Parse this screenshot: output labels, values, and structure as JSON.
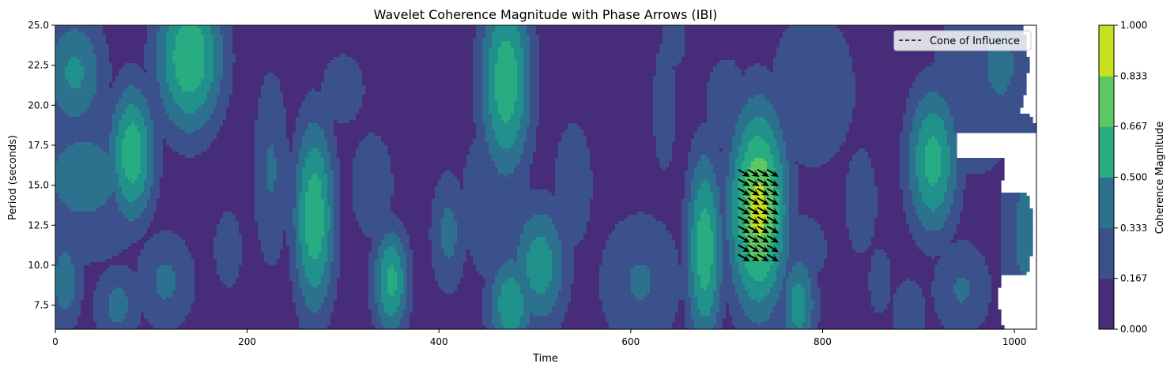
{
  "chart_data": {
    "type": "heatmap",
    "subtype": "filled-contour",
    "title": "Wavelet Coherence Magnitude with Phase Arrows (IBI)",
    "xlabel": "Time",
    "ylabel": "Period (seconds)",
    "xlim": [
      0,
      1023
    ],
    "ylim": [
      6,
      25
    ],
    "xticks": [
      0,
      200,
      400,
      600,
      800,
      1000
    ],
    "yticks": [
      7.5,
      10.0,
      12.5,
      15.0,
      17.5,
      20.0,
      22.5,
      25.0
    ],
    "colorbar": {
      "label": "Coherence Magnitude",
      "levels": [
        0.0,
        0.167,
        0.333,
        0.5,
        0.667,
        0.833,
        1.0
      ],
      "tick_labels": [
        "0.000",
        "0.167",
        "0.333",
        "0.500",
        "0.667",
        "0.833",
        "1.000"
      ],
      "colors": [
        "#472c7a",
        "#3b518b",
        "#2c718e",
        "#21918c",
        "#27ad81",
        "#5cc863",
        "#c7e020"
      ]
    },
    "legend": {
      "placement": "top-right",
      "entries": [
        {
          "label": "Cone of Influence",
          "style": "dashed",
          "color": "#000000"
        }
      ]
    },
    "background_level": 0,
    "blobs": [
      {
        "x": 140,
        "y": 23,
        "sx": 26,
        "sy": 3.5,
        "v": 4.9
      },
      {
        "x": 80,
        "y": 17,
        "sx": 18,
        "sy": 3.2,
        "v": 4.7
      },
      {
        "x": 30,
        "y": 15.5,
        "sx": 60,
        "sy": 4.2,
        "v": 2.3
      },
      {
        "x": 20,
        "y": 22,
        "sx": 25,
        "sy": 2.8,
        "v": 3.2
      },
      {
        "x": 10,
        "y": 9,
        "sx": 14,
        "sy": 2.5,
        "v": 2.6
      },
      {
        "x": 65,
        "y": 7.5,
        "sx": 20,
        "sy": 2.0,
        "v": 2.3
      },
      {
        "x": 115,
        "y": 9,
        "sx": 25,
        "sy": 2.5,
        "v": 2.2
      },
      {
        "x": 180,
        "y": 11,
        "sx": 12,
        "sy": 2.0,
        "v": 2.0
      },
      {
        "x": 270,
        "y": 13,
        "sx": 16,
        "sy": 4.5,
        "v": 4.8
      },
      {
        "x": 225,
        "y": 16,
        "sx": 15,
        "sy": 5.0,
        "v": 2.1
      },
      {
        "x": 300,
        "y": 21,
        "sx": 30,
        "sy": 3.0,
        "v": 1.3
      },
      {
        "x": 350,
        "y": 9,
        "sx": 14,
        "sy": 2.5,
        "v": 4.3
      },
      {
        "x": 330,
        "y": 15,
        "sx": 20,
        "sy": 3.0,
        "v": 1.8
      },
      {
        "x": 410,
        "y": 12,
        "sx": 15,
        "sy": 3.0,
        "v": 2.3
      },
      {
        "x": 470,
        "y": 21.5,
        "sx": 20,
        "sy": 4.5,
        "v": 4.7
      },
      {
        "x": 475,
        "y": 7.5,
        "sx": 18,
        "sy": 2.5,
        "v": 3.8
      },
      {
        "x": 505,
        "y": 10,
        "sx": 22,
        "sy": 3.0,
        "v": 3.6
      },
      {
        "x": 460,
        "y": 14,
        "sx": 35,
        "sy": 5.0,
        "v": 1.7
      },
      {
        "x": 540,
        "y": 15,
        "sx": 20,
        "sy": 4.0,
        "v": 1.6
      },
      {
        "x": 610,
        "y": 9,
        "sx": 35,
        "sy": 3.5,
        "v": 2.1
      },
      {
        "x": 635,
        "y": 20,
        "sx": 14,
        "sy": 5.0,
        "v": 1.4
      },
      {
        "x": 645,
        "y": 24,
        "sx": 14,
        "sy": 1.8,
        "v": 1.5
      },
      {
        "x": 677,
        "y": 11,
        "sx": 14,
        "sy": 4.5,
        "v": 4.7
      },
      {
        "x": 733,
        "y": 13.5,
        "sx": 22,
        "sy": 4.7,
        "v": 6.4
      },
      {
        "x": 700,
        "y": 20,
        "sx": 30,
        "sy": 4.0,
        "v": 1.3
      },
      {
        "x": 775,
        "y": 7.5,
        "sx": 14,
        "sy": 2.5,
        "v": 3.5
      },
      {
        "x": 790,
        "y": 21,
        "sx": 45,
        "sy": 5.0,
        "v": 1.6
      },
      {
        "x": 775,
        "y": 11,
        "sx": 40,
        "sy": 3.0,
        "v": 1.3
      },
      {
        "x": 840,
        "y": 14,
        "sx": 20,
        "sy": 4.0,
        "v": 1.4
      },
      {
        "x": 860,
        "y": 9,
        "sx": 14,
        "sy": 2.5,
        "v": 1.4
      },
      {
        "x": 915,
        "y": 16.5,
        "sx": 20,
        "sy": 3.5,
        "v": 4.4
      },
      {
        "x": 960,
        "y": 21,
        "sx": 40,
        "sy": 4.5,
        "v": 2.0
      },
      {
        "x": 985,
        "y": 22.5,
        "sx": 22,
        "sy": 3.0,
        "v": 2.4
      },
      {
        "x": 945,
        "y": 8.5,
        "sx": 25,
        "sy": 2.5,
        "v": 2.1
      },
      {
        "x": 890,
        "y": 7,
        "sx": 15,
        "sy": 1.8,
        "v": 2.0
      },
      {
        "x": 1010,
        "y": 12,
        "sx": 20,
        "sy": 6.0,
        "v": 2.2
      },
      {
        "x": 1000,
        "y": 8,
        "sx": 15,
        "sy": 2.5,
        "v": 1.8
      }
    ],
    "phase_arrows": {
      "x_range": [
        718,
        748
      ],
      "y_range": [
        10.5,
        15.8
      ],
      "nx": 4,
      "ny": 10,
      "direction": "down-right",
      "color": "#000000"
    }
  }
}
